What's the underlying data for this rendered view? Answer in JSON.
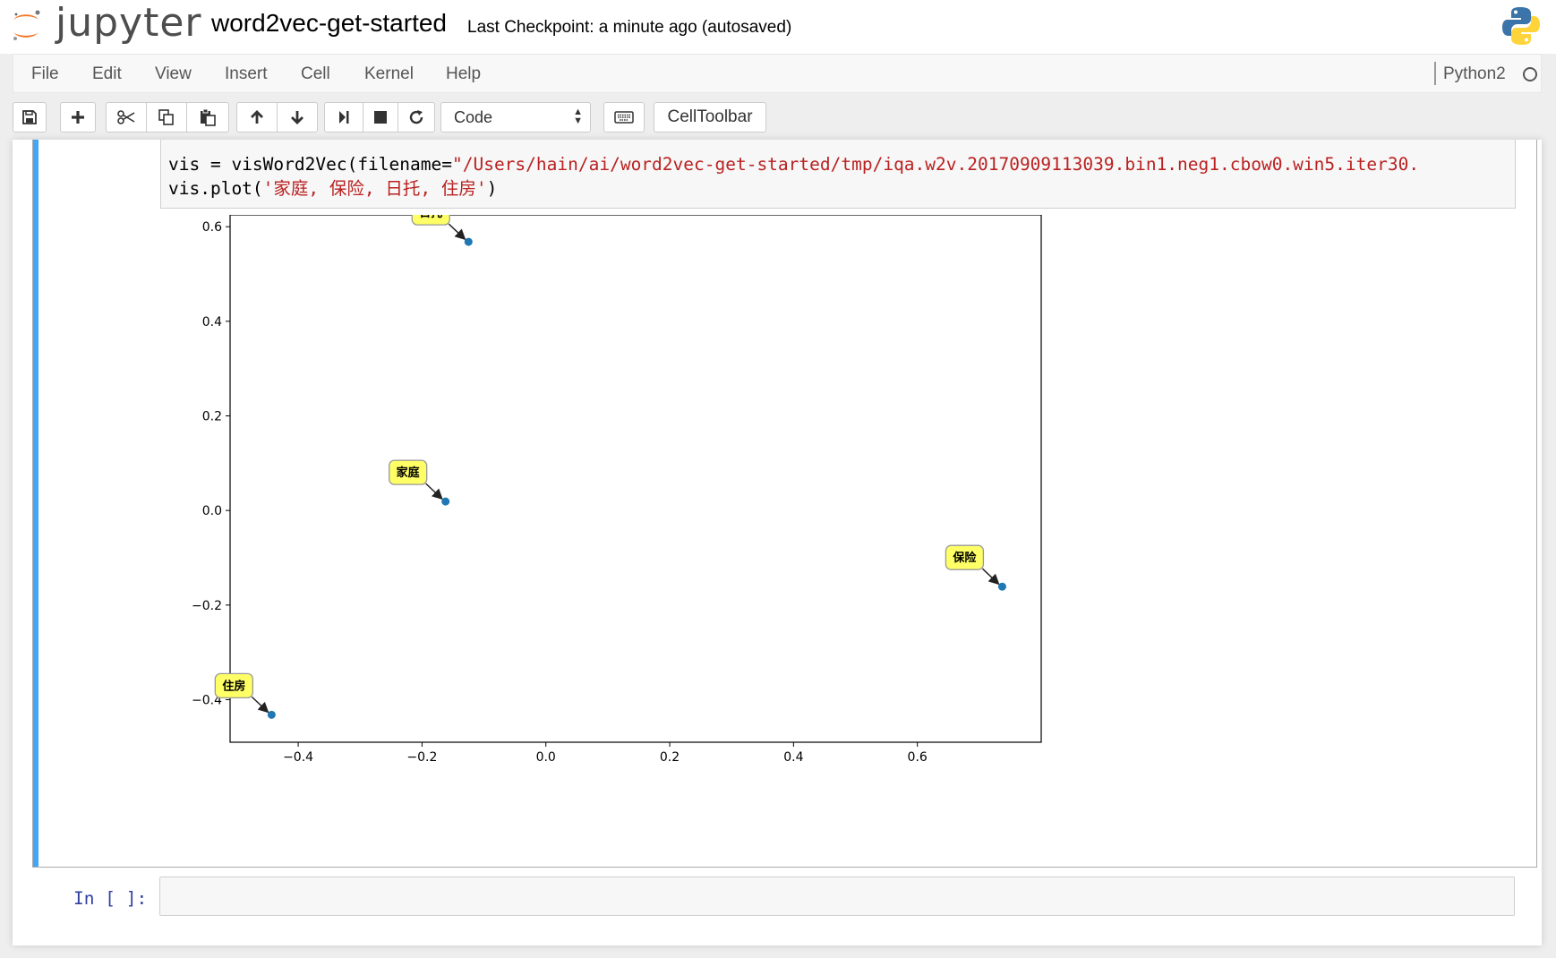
{
  "header": {
    "logo_text": "jupyter",
    "notebook_title": "word2vec-get-started",
    "checkpoint_status": "Last Checkpoint: a minute ago (autosaved)",
    "kernel_logo_icon": "python-logo-icon"
  },
  "menubar": {
    "items": [
      "File",
      "Edit",
      "View",
      "Insert",
      "Cell",
      "Kernel",
      "Help"
    ],
    "kernel_name": "Python2",
    "kernel_status_icon": "kernel-idle-circle-icon"
  },
  "toolbar": {
    "buttons": [
      {
        "icon": "save-icon"
      },
      {
        "icon": "plus-icon"
      },
      {
        "icon": "cut-icon"
      },
      {
        "icon": "copy-icon"
      },
      {
        "icon": "paste-icon"
      },
      {
        "icon": "arrow-up-icon"
      },
      {
        "icon": "arrow-down-icon"
      },
      {
        "icon": "run-step-icon"
      },
      {
        "icon": "stop-icon"
      },
      {
        "icon": "restart-icon"
      },
      {
        "icon": "keyboard-icon"
      }
    ],
    "cell_type": "Code",
    "celltoolbar_label": "CellToolbar"
  },
  "cell1": {
    "line1_prefix": "vis = visWord2Vec(filename=",
    "line1_string": "\"/Users/hain/ai/word2vec-get-started/tmp/iqa.w2v.20170909113039.bin1.neg1.cbow0.win5.iter30.",
    "line2_prefix": "vis.plot(",
    "line2_string": "'家庭, 保险, 日托, 住房'",
    "line2_suffix": ")"
  },
  "chart_data": {
    "type": "scatter",
    "title": "",
    "xlabel": "",
    "ylabel": "",
    "xlim": [
      -0.51,
      0.8
    ],
    "ylim": [
      -0.49,
      0.625
    ],
    "xticks": [
      "−0.4",
      "−0.2",
      "0.0",
      "0.2",
      "0.4",
      "0.6"
    ],
    "xtick_values": [
      -0.4,
      -0.2,
      0.0,
      0.2,
      0.4,
      0.6
    ],
    "yticks": [
      "0.6",
      "0.4",
      "0.2",
      "0.0",
      "−0.2",
      "−0.4"
    ],
    "ytick_values": [
      0.6,
      0.4,
      0.2,
      0.0,
      -0.2,
      -0.4
    ],
    "point_color": "#1f77b4",
    "label_color": "#ffff66",
    "points": [
      {
        "label": "日托",
        "x": -0.125,
        "y": 0.568
      },
      {
        "label": "家庭",
        "x": -0.162,
        "y": 0.019
      },
      {
        "label": "保险",
        "x": 0.737,
        "y": -0.161
      },
      {
        "label": "住房",
        "x": -0.443,
        "y": -0.432
      }
    ]
  },
  "cell2": {
    "prompt": "In [ ]:"
  }
}
